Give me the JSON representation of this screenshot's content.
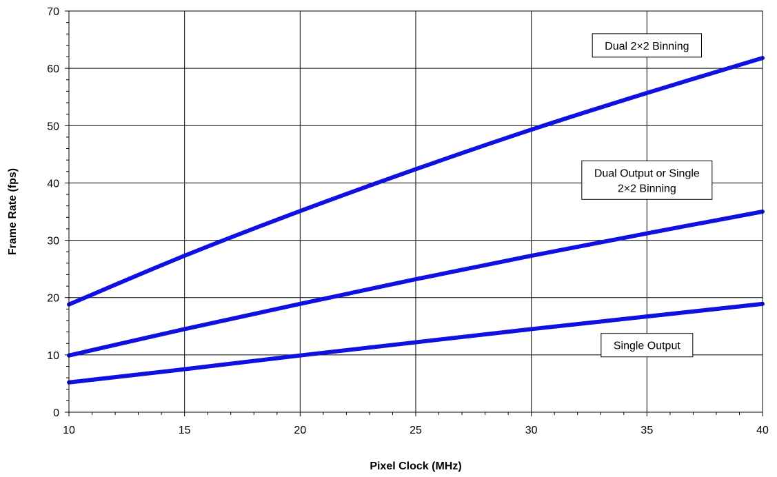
{
  "chart_data": {
    "type": "line",
    "xlabel": "Pixel Clock (MHz)",
    "ylabel": "Frame Rate (fps)",
    "xlim": [
      10,
      40
    ],
    "ylim": [
      0,
      70
    ],
    "x_ticks": [
      10,
      15,
      20,
      25,
      30,
      35,
      40
    ],
    "y_ticks": [
      0,
      10,
      20,
      30,
      40,
      50,
      60,
      70
    ],
    "grid": true,
    "legend": "none",
    "series_color": "#1010E0",
    "series": [
      {
        "x": [
          10,
          15,
          20,
          25,
          30,
          35,
          40
        ],
        "values": [
          18.8,
          27.3,
          35.1,
          42.4,
          49.3,
          55.7,
          61.8
        ]
      },
      {
        "x": [
          10,
          15,
          20,
          25,
          30,
          35,
          40
        ],
        "values": [
          9.9,
          14.5,
          18.9,
          23.2,
          27.3,
          31.2,
          35.0
        ]
      },
      {
        "x": [
          10,
          15,
          20,
          25,
          30,
          35,
          40
        ],
        "values": [
          5.2,
          7.5,
          9.9,
          12.2,
          14.5,
          16.7,
          18.9
        ]
      }
    ],
    "annotations": [
      {
        "lines": [
          "Dual 2×2 Binning"
        ],
        "x": 35,
        "y": 64
      },
      {
        "lines": [
          "Dual Output or Single",
          "2×2 Binning"
        ],
        "x": 35,
        "y": 40.5
      },
      {
        "lines": [
          "Single Output"
        ],
        "x": 35,
        "y": 11.7
      }
    ]
  }
}
